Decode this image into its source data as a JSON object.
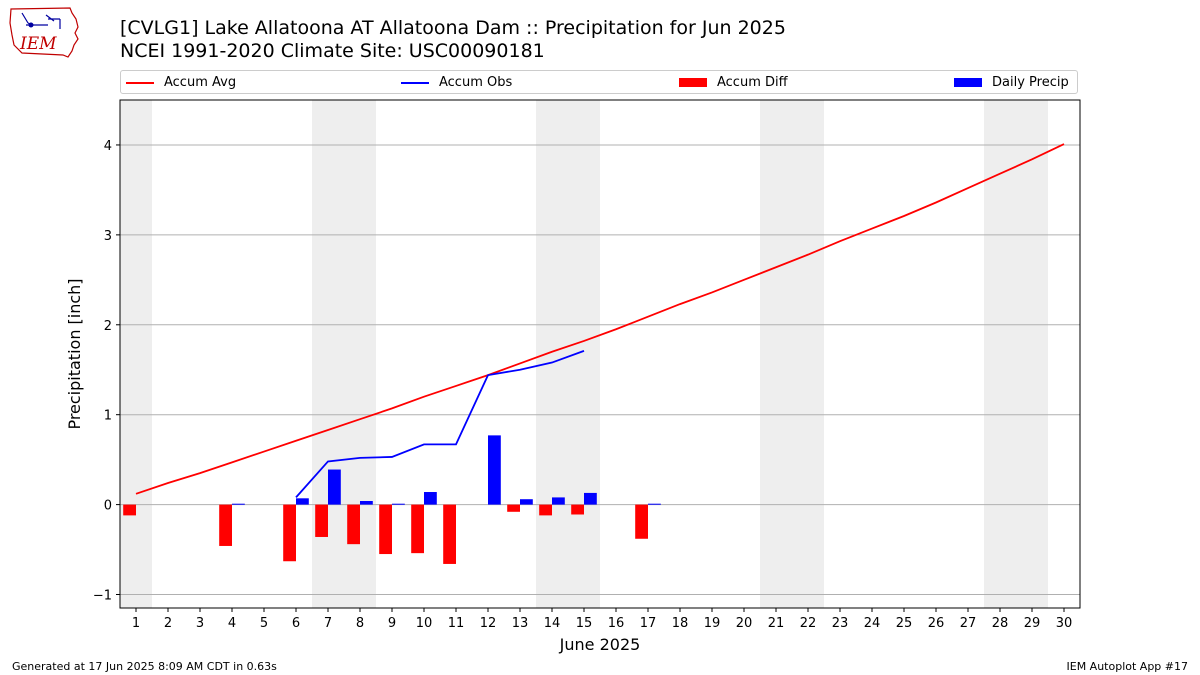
{
  "chart_data": {
    "type": "bar",
    "title": "[CVLG1] Lake Allatoona  AT Allatoona Dam :: Precipitation for Jun 2025",
    "subtitle": "NCEI 1991-2020 Climate Site: USC00090181",
    "xlabel": "June 2025",
    "ylabel": "Precipitation [inch]",
    "xlim": [
      0.5,
      30.5
    ],
    "ylim": [
      -1.15,
      4.5
    ],
    "yticks": [
      -1,
      0,
      1,
      2,
      3,
      4
    ],
    "x": [
      1,
      2,
      3,
      4,
      5,
      6,
      7,
      8,
      9,
      10,
      11,
      12,
      13,
      14,
      15,
      16,
      17,
      18,
      19,
      20,
      21,
      22,
      23,
      24,
      25,
      26,
      27,
      28,
      29,
      30
    ],
    "weekend_bands": [
      [
        0.5,
        1.5
      ],
      [
        6.5,
        8.5
      ],
      [
        13.5,
        15.5
      ],
      [
        20.5,
        22.5
      ],
      [
        27.5,
        29.5
      ]
    ],
    "grid": "horizontal",
    "legend_placement": "top",
    "series": [
      {
        "name": "Accum Avg",
        "type": "line",
        "color": "#ff0000",
        "values": [
          0.12,
          0.24,
          0.35,
          0.47,
          0.59,
          0.71,
          0.83,
          0.95,
          1.07,
          1.2,
          1.32,
          1.44,
          1.57,
          1.7,
          1.82,
          1.95,
          2.09,
          2.23,
          2.36,
          2.5,
          2.64,
          2.78,
          2.93,
          3.07,
          3.21,
          3.36,
          3.52,
          3.68,
          3.84,
          4.01
        ]
      },
      {
        "name": "Accum Obs",
        "type": "line",
        "color": "#0000ff",
        "values": [
          null,
          null,
          null,
          null,
          null,
          0.08,
          0.48,
          0.52,
          0.53,
          0.67,
          0.67,
          1.44,
          1.5,
          1.58,
          1.71,
          null,
          null,
          null,
          null,
          null,
          null,
          null,
          null,
          null,
          null,
          null,
          null,
          null,
          null,
          null
        ]
      },
      {
        "name": "Accum Diff",
        "type": "bar",
        "color": "#ff0000",
        "values": [
          -0.12,
          null,
          null,
          -0.46,
          null,
          -0.63,
          -0.36,
          -0.44,
          -0.55,
          -0.54,
          -0.66,
          0.0,
          -0.08,
          -0.12,
          -0.11,
          null,
          -0.38,
          null,
          null,
          null,
          null,
          null,
          null,
          null,
          null,
          null,
          null,
          null,
          null,
          null
        ]
      },
      {
        "name": "Daily Precip",
        "type": "bar",
        "color": "#0000ff",
        "values": [
          null,
          null,
          null,
          0.01,
          null,
          0.07,
          0.39,
          0.04,
          0.01,
          0.14,
          null,
          0.77,
          0.06,
          0.08,
          0.13,
          null,
          0.01,
          null,
          null,
          null,
          null,
          null,
          null,
          null,
          null,
          null,
          null,
          null,
          null,
          null
        ]
      }
    ]
  },
  "colors": {
    "accum_avg": "#ff0000",
    "accum_obs": "#0000ff",
    "accum_diff": "#ff0000",
    "daily_precip": "#0000ff",
    "weekend_band": "#eeeeee",
    "grid": "#b0b0b0"
  },
  "legend": {
    "accum_avg": "Accum Avg",
    "accum_obs": "Accum Obs",
    "accum_diff": "Accum Diff",
    "daily_precip": "Daily Precip"
  },
  "logo": {
    "text": "IEM",
    "icon": "iowa-state-outline-icon"
  },
  "footer": {
    "generated": "Generated at 17 Jun 2025 8:09 AM CDT in 0.63s",
    "app": "IEM Autoplot App #17"
  }
}
